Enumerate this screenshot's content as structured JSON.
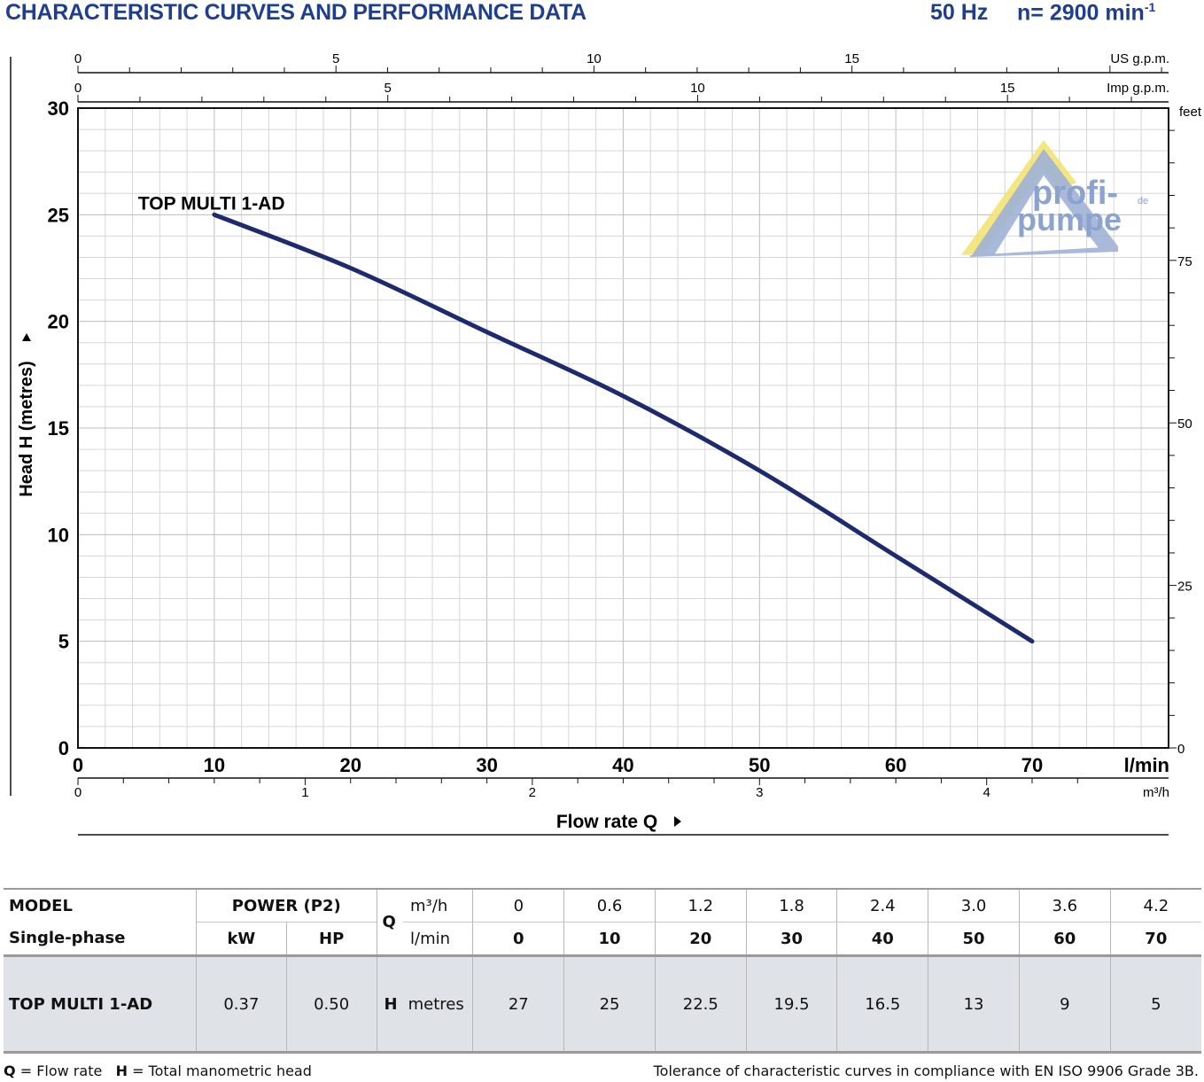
{
  "header": {
    "title": "CHARACTERISTIC CURVES AND PERFORMANCE DATA",
    "frequency": "50 Hz",
    "speed_prefix": "n= 2900 min",
    "speed_exp": "-1"
  },
  "watermark": {
    "line1": "profi-",
    "line2": "pumpe",
    "suffix": "de"
  },
  "colors": {
    "brand": "#1f3f8c",
    "curve": "#1d2b6e",
    "grid": "#c9c9c9",
    "table_fill": "#dfe3e8"
  },
  "chart_data": {
    "type": "line",
    "series": [
      {
        "name": "TOP MULTI 1-AD",
        "x": [
          10,
          20,
          30,
          40,
          50,
          60,
          70
        ],
        "y": [
          25,
          22.5,
          19.5,
          16.5,
          13,
          9,
          5
        ]
      }
    ],
    "xlabel": "Flow rate Q",
    "ylabel": "Head H (metres)",
    "xlim": [
      0,
      80
    ],
    "ylim": [
      0,
      30
    ],
    "grid": true,
    "axes": {
      "lmin": {
        "ticks": [
          0,
          10,
          20,
          30,
          40,
          50,
          60,
          70
        ],
        "unit": "l/min"
      },
      "m3h": {
        "ticks": [
          0,
          1,
          2,
          3,
          4
        ],
        "unit": "m³/h"
      },
      "us_gpm": {
        "ticks": [
          0,
          5,
          10,
          15
        ],
        "unit": "US g.p.m."
      },
      "imp_gpm": {
        "ticks": [
          0,
          5,
          10,
          15
        ],
        "unit": "Imp g.p.m."
      },
      "head_m": {
        "ticks": [
          0,
          5,
          10,
          15,
          20,
          25,
          30
        ]
      },
      "feet": {
        "ticks": [
          0,
          25,
          50,
          75
        ],
        "unit": "feet"
      }
    }
  },
  "table": {
    "model_header": "MODEL",
    "phase_header": "Single-phase",
    "power_header": "POWER (P2)",
    "kw_header": "kW",
    "hp_header": "HP",
    "q_header": "Q",
    "m3h_unit": "m³/h",
    "lmin_unit": "l/min",
    "m3h_values": [
      "0",
      "0.6",
      "1.2",
      "1.8",
      "2.4",
      "3.0",
      "3.6",
      "4.2"
    ],
    "lmin_values": [
      "0",
      "10",
      "20",
      "30",
      "40",
      "50",
      "60",
      "70"
    ],
    "row": {
      "model": "TOP MULTI 1-AD",
      "kw": "0.37",
      "hp": "0.50",
      "h_label": "H",
      "h_unit": "metres",
      "h_values": [
        "27",
        "25",
        "22.5",
        "19.5",
        "16.5",
        "13",
        "9",
        "5"
      ]
    }
  },
  "footer": {
    "q_abbr": "Q",
    "q_def": "= Flow rate",
    "h_abbr": "H",
    "h_def": "= Total manometric head",
    "tolerance": "Tolerance of characteristic curves in compliance with EN ISO 9906 Grade 3B."
  }
}
